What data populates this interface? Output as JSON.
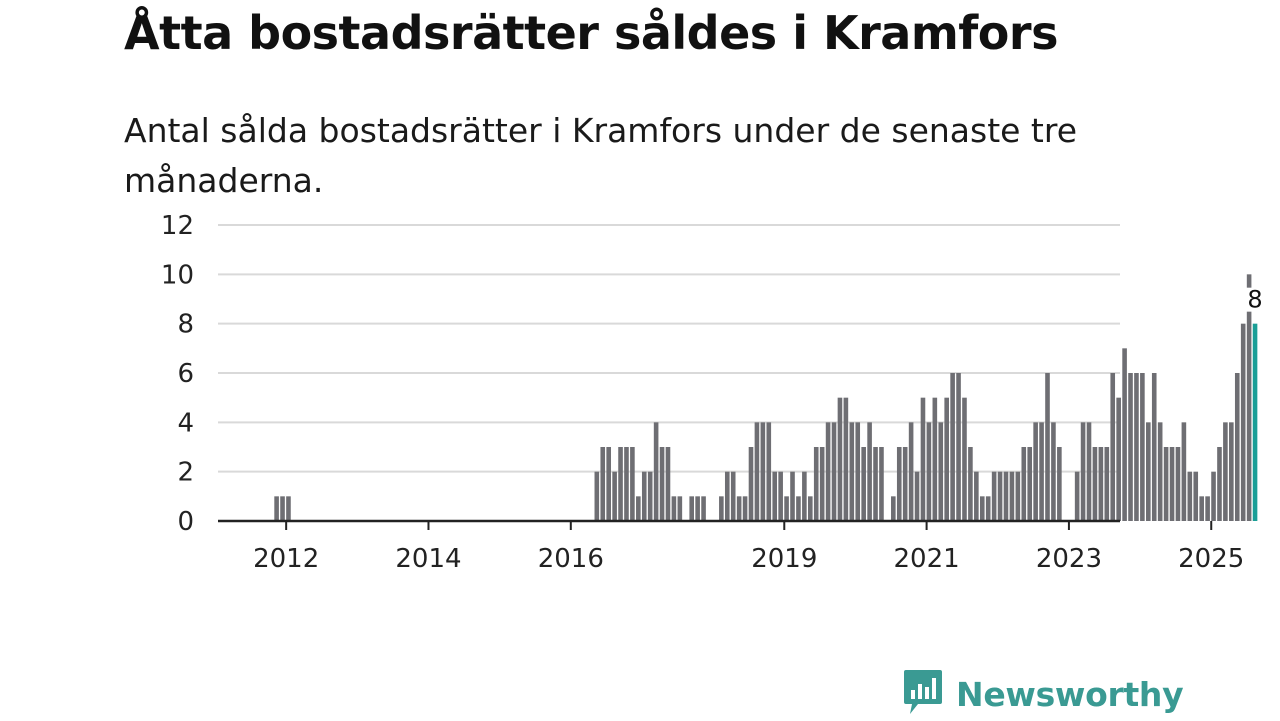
{
  "header": {
    "title": "Åtta bostadsrätter såldes i Kramfors",
    "subtitle": "Antal sålda bostadsrätter i Kramfors under de senaste tre månaderna."
  },
  "brand": {
    "name": "Newsworthy",
    "color": "#3a9a93",
    "icon": "newsworthy-logo-icon"
  },
  "colors": {
    "bar": "#6e6e73",
    "highlight": "#1a9e96",
    "grid": "#d9d9d9",
    "axis": "#222222"
  },
  "chart_data": {
    "type": "bar",
    "title": "Åtta bostadsrätter såldes i Kramfors",
    "subtitle": "Antal sålda bostadsrätter i Kramfors under de senaste tre månaderna.",
    "xlabel": "",
    "ylabel": "",
    "ylim": [
      0,
      12
    ],
    "yticks": [
      0,
      2,
      4,
      6,
      8,
      10,
      12
    ],
    "x_unit": "month",
    "x_start": "2011-01",
    "x_ticks": [
      {
        "label": "2012",
        "month_index": 12
      },
      {
        "label": "2014",
        "month_index": 36
      },
      {
        "label": "2016",
        "month_index": 60
      },
      {
        "label": "2019",
        "month_index": 96
      },
      {
        "label": "2021",
        "month_index": 120
      },
      {
        "label": "2023",
        "month_index": 144
      },
      {
        "label": "2025",
        "month_index": 168
      }
    ],
    "grid": true,
    "highlight_last": true,
    "last_value_label": "8",
    "values": [
      0,
      0,
      0,
      0,
      0,
      0,
      0,
      0,
      0,
      0,
      1,
      1,
      1,
      0,
      0,
      0,
      0,
      0,
      0,
      0,
      0,
      0,
      0,
      0,
      0,
      0,
      0,
      0,
      0,
      0,
      0,
      0,
      0,
      0,
      0,
      0,
      0,
      0,
      0,
      0,
      0,
      0,
      0,
      0,
      0,
      0,
      0,
      0,
      0,
      0,
      0,
      0,
      0,
      0,
      0,
      0,
      0,
      0,
      0,
      0,
      0,
      0,
      0,
      0,
      2,
      3,
      3,
      2,
      3,
      3,
      3,
      1,
      2,
      2,
      4,
      3,
      3,
      1,
      1,
      0,
      1,
      1,
      1,
      0,
      0,
      1,
      2,
      2,
      1,
      1,
      3,
      4,
      4,
      4,
      2,
      2,
      1,
      2,
      1,
      2,
      1,
      3,
      3,
      4,
      4,
      5,
      5,
      4,
      4,
      3,
      4,
      3,
      3,
      0,
      1,
      3,
      3,
      4,
      2,
      5,
      4,
      5,
      4,
      5,
      6,
      6,
      5,
      3,
      2,
      1,
      1,
      2,
      2,
      2,
      2,
      2,
      3,
      3,
      4,
      4,
      6,
      4,
      3,
      0,
      0,
      2,
      4,
      4,
      3,
      3,
      3,
      6,
      5,
      7,
      6,
      6,
      6,
      4,
      6,
      4,
      3,
      3,
      3,
      4,
      2,
      2,
      1,
      1,
      2,
      3,
      4,
      4,
      6,
      8,
      10,
      8
    ]
  }
}
